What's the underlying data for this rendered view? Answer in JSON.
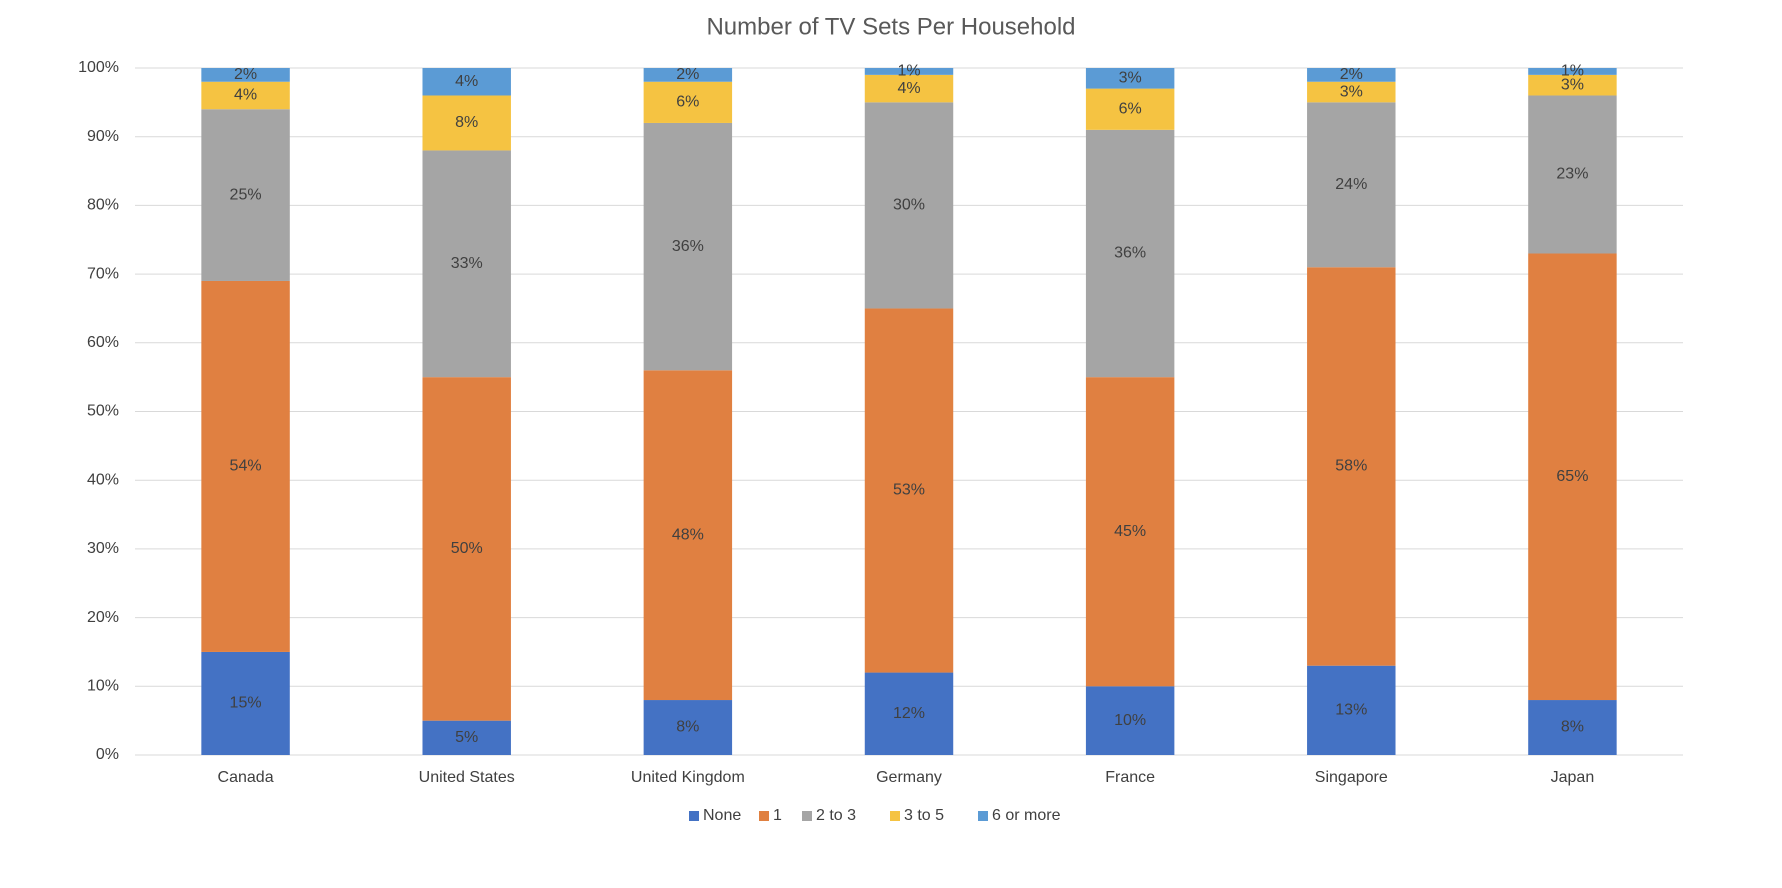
{
  "chart_data": {
    "type": "stacked_bar",
    "title": "Number of TV Sets Per Household",
    "categories": [
      "Canada",
      "United States",
      "United Kingdom",
      "Germany",
      "France",
      "Singapore",
      "Japan"
    ],
    "series": [
      {
        "name": "None",
        "color": "#4472c4",
        "values": [
          15,
          5,
          8,
          12,
          10,
          13,
          8
        ],
        "value_labels": [
          "15%",
          "5%",
          "8%",
          "12%",
          "10%",
          "13%",
          "8%"
        ]
      },
      {
        "name": "1",
        "color": "#e08041",
        "values": [
          54,
          50,
          48,
          53,
          45,
          58,
          65
        ],
        "value_labels": [
          "54%",
          "50%",
          "48%",
          "53%",
          "45%",
          "58%",
          "65%"
        ]
      },
      {
        "name": "2 to 3",
        "color": "#a5a5a5",
        "values": [
          25,
          33,
          36,
          30,
          36,
          24,
          23
        ],
        "value_labels": [
          "25%",
          "33%",
          "36%",
          "30%",
          "36%",
          "24%",
          "23%"
        ]
      },
      {
        "name": "3 to 5",
        "color": "#f5c342",
        "values": [
          4,
          8,
          6,
          4,
          6,
          3,
          3
        ],
        "value_labels": [
          "4%",
          "8%",
          "6%",
          "4%",
          "6%",
          "3%",
          "3%"
        ]
      },
      {
        "name": "6 or more",
        "color": "#5b9bd5",
        "values": [
          2,
          4,
          2,
          1,
          3,
          2,
          1
        ],
        "value_labels": [
          "2%",
          "4%",
          "2%",
          "1%",
          "3%",
          "2%",
          "1%"
        ]
      }
    ],
    "ylim": [
      0,
      100
    ],
    "yticks": [
      {
        "value": 0,
        "label": "0%"
      },
      {
        "value": 10,
        "label": "10%"
      },
      {
        "value": 20,
        "label": "20%"
      },
      {
        "value": 30,
        "label": "30%"
      },
      {
        "value": 40,
        "label": "40%"
      },
      {
        "value": 50,
        "label": "50%"
      },
      {
        "value": 60,
        "label": "60%"
      },
      {
        "value": 70,
        "label": "70%"
      },
      {
        "value": 80,
        "label": "80%"
      },
      {
        "value": 90,
        "label": "90%"
      },
      {
        "value": 100,
        "label": "100%"
      }
    ],
    "grid": true,
    "legend": "bottom"
  }
}
